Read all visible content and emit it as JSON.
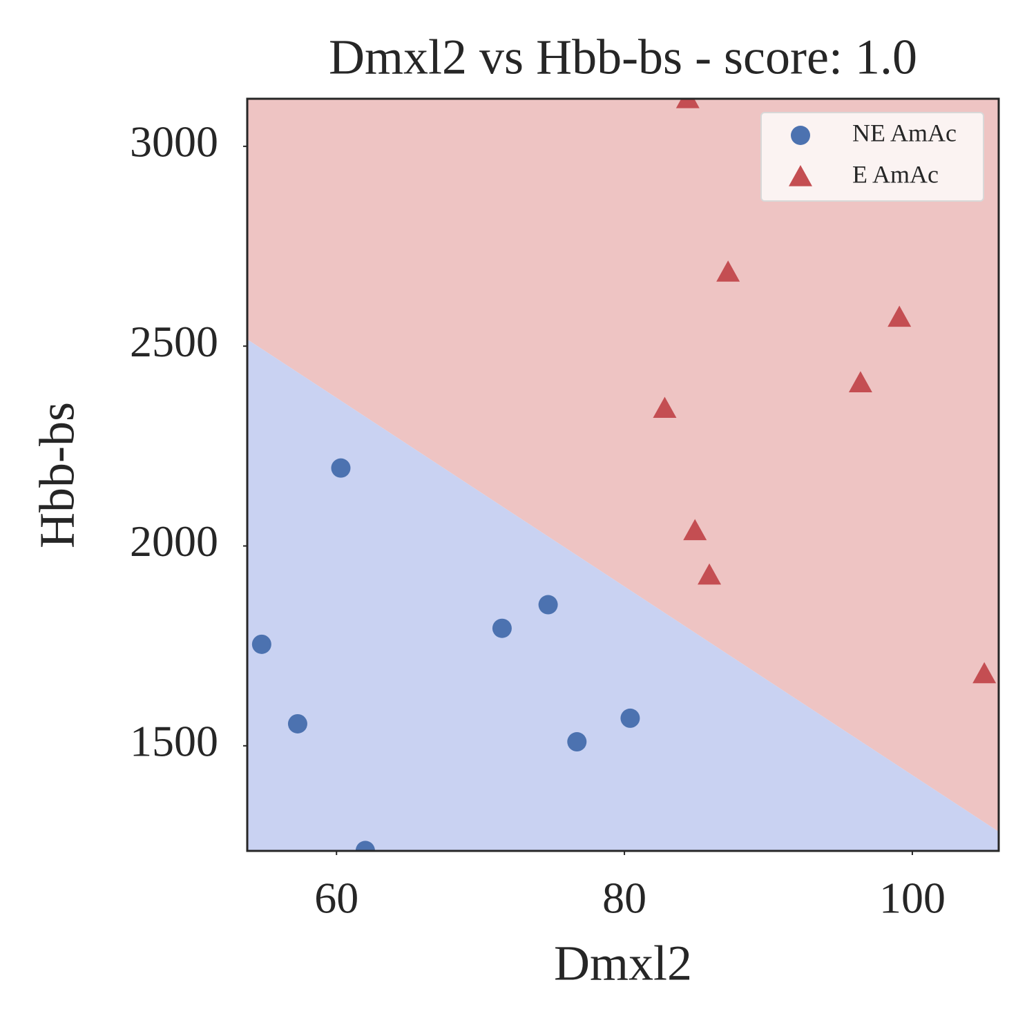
{
  "chart_data": {
    "type": "scatter",
    "title": "Dmxl2 vs Hbb-bs - score: 1.0",
    "x_label": "Dmxl2",
    "y_label": "Hbb-bs",
    "xlim": [
      53.8,
      106.0
    ],
    "ylim": [
      1237,
      3119
    ],
    "xticks": [
      60,
      80,
      100
    ],
    "yticks": [
      1500,
      2000,
      2500,
      3000
    ],
    "legend_position": "upper right",
    "boundary": {
      "x": [
        53.8,
        106.0
      ],
      "y": [
        2517,
        1285
      ],
      "above_color": "#eec4c3",
      "below_color": "#c9d2f2"
    },
    "series": [
      {
        "name": "NE AmAc",
        "color": "#4c72b0",
        "marker": "circle",
        "x": [
          54.8,
          57.3,
          60.3,
          62.0,
          71.5,
          74.7,
          76.7,
          80.4
        ],
        "values": [
          1754,
          1555,
          2195,
          1238,
          1794,
          1853,
          1510,
          1569
        ]
      },
      {
        "name": "E AmAc",
        "color": "#c44e52",
        "marker": "triangle",
        "x": [
          84.4,
          87.2,
          99.1,
          96.4,
          82.8,
          84.9,
          85.9,
          105.0
        ],
        "values": [
          3119,
          2685,
          2572,
          2408,
          2344,
          2038,
          1927,
          1680
        ]
      }
    ]
  }
}
